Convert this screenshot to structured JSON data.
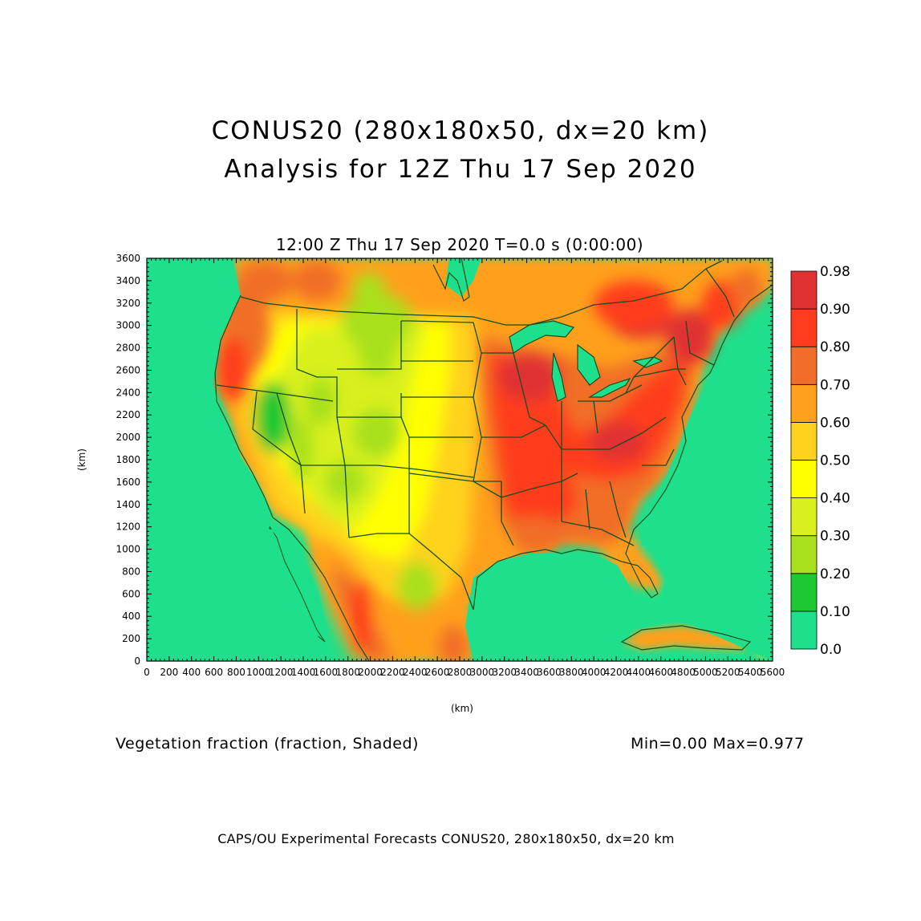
{
  "title_line1": "CONUS20 (280x180x50, dx=20 km)",
  "title_line2": "Analysis for 12Z Thu 17 Sep 2020",
  "plot_header": "12:00 Z Thu 17 Sep 2020    T=0.0 s (0:00:00)",
  "x_axis_label": "(km)",
  "y_axis_label": "(km)",
  "field_label": "Vegetation fraction (fraction, Shaded)",
  "min_max": "Min=0.00 Max=0.977",
  "footer": "CAPS/OU Experimental Forecasts  CONUS20, 280x180x50, dx=20 km",
  "x_ticks": [
    "0",
    "200",
    "400",
    "600",
    "800",
    "1000",
    "1200",
    "1400",
    "1600",
    "1800",
    "2000",
    "2200",
    "2400",
    "2600",
    "2800",
    "3000",
    "3200",
    "3400",
    "3600",
    "3800",
    "4000",
    "4200",
    "4400",
    "4600",
    "4800",
    "5000",
    "5200",
    "5400",
    "5600"
  ],
  "y_ticks": [
    "0",
    "200",
    "400",
    "600",
    "800",
    "1000",
    "1200",
    "1400",
    "1600",
    "1800",
    "2000",
    "2200",
    "2400",
    "2600",
    "2800",
    "3000",
    "3200",
    "3400",
    "3600"
  ],
  "colorbar": {
    "labels": [
      "0.0",
      "0.10",
      "0.20",
      "0.30",
      "0.40",
      "0.50",
      "0.60",
      "0.70",
      "0.80",
      "0.90",
      "0.98"
    ],
    "colors": [
      "#1ee08c",
      "#1ec832",
      "#a8e01e",
      "#d8f01e",
      "#ffff00",
      "#ffd21e",
      "#ffa01e",
      "#f06e28",
      "#ff3c1e",
      "#e03232"
    ]
  },
  "chart_data": {
    "type": "heatmap",
    "title": "CONUS20 (280x180x50, dx=20 km) Analysis for 12Z Thu 17 Sep 2020",
    "xlabel": "(km)",
    "ylabel": "(km)",
    "xlim": [
      0,
      5600
    ],
    "ylim": [
      0,
      3600
    ],
    "variable": "Vegetation fraction (fraction, Shaded)",
    "min": 0.0,
    "max": 0.977,
    "levels": [
      0.0,
      0.1,
      0.2,
      0.3,
      0.4,
      0.5,
      0.6,
      0.7,
      0.8,
      0.9,
      0.98
    ]
  }
}
